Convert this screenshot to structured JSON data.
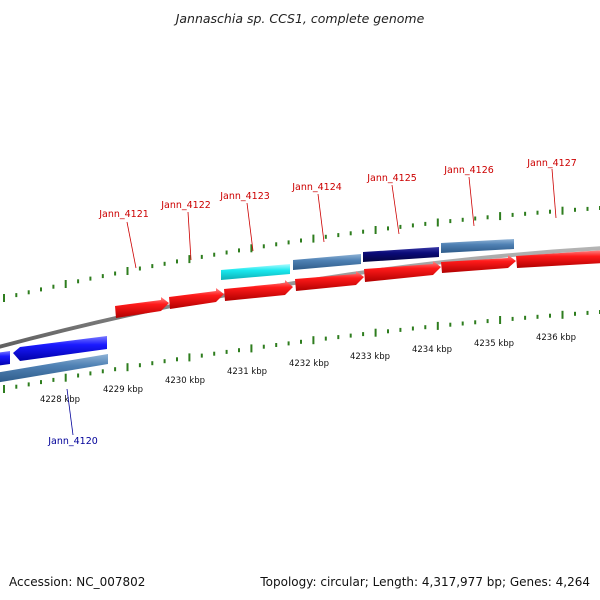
{
  "title": "Jannaschia sp. CCS1, complete genome",
  "accession": "Accession: NC_007802",
  "topology": "Topology: circular; Length: 4,317,977 bp; Genes: 4,264",
  "colors": {
    "backbone": "#8a8a8a",
    "tick": "#2e7d1e",
    "forward_gene": "#ee1111",
    "reverse_gene": "#1111ee",
    "forward_label": "#cc0000",
    "reverse_label": "#000099",
    "cds_steel": "#4f81b4",
    "cds_cyan": "#19e8ee",
    "cds_navy": "#0a0a78"
  },
  "kbp_labels": [
    "4228 kbp",
    "4229 kbp",
    "4230 kbp",
    "4231 kbp",
    "4232 kbp",
    "4233 kbp",
    "4234 kbp",
    "4235 kbp",
    "4236 kbp"
  ],
  "gene_labels": [
    {
      "text": "Jann_4120",
      "strand": "reverse"
    },
    {
      "text": "Jann_4121",
      "strand": "forward"
    },
    {
      "text": "Jann_4122",
      "strand": "forward"
    },
    {
      "text": "Jann_4123",
      "strand": "forward"
    },
    {
      "text": "Jann_4124",
      "strand": "forward"
    },
    {
      "text": "Jann_4125",
      "strand": "forward"
    },
    {
      "text": "Jann_4126",
      "strand": "forward"
    },
    {
      "text": "Jann_4127",
      "strand": "forward"
    }
  ]
}
